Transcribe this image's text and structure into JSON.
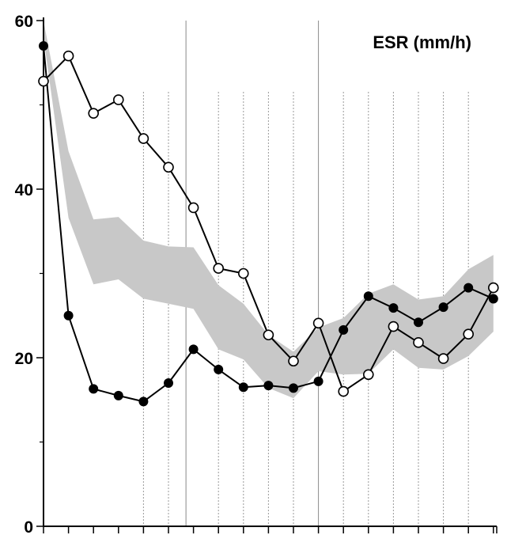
{
  "chart_data": {
    "type": "line",
    "title": "ESR (mm/h)",
    "xlabel": "",
    "ylabel": "",
    "ylim": [
      0,
      60
    ],
    "y_ticks": [
      0,
      20,
      40,
      60
    ],
    "x": [
      0,
      1,
      2,
      3,
      4,
      5,
      6,
      7,
      8,
      9,
      10,
      11,
      12,
      13,
      14,
      15,
      16,
      17,
      18
    ],
    "series": [
      {
        "marker": "filled-circle",
        "color": "#000000",
        "values": [
          57,
          25,
          16.3,
          15.5,
          14.8,
          17,
          21,
          18.6,
          16.5,
          16.7,
          16.4,
          17.2,
          23.3,
          27.3,
          25.9,
          24.2,
          26,
          28.3,
          27
        ]
      },
      {
        "marker": "open-circle",
        "color": "#000000",
        "values": [
          52.8,
          55.8,
          49,
          50.6,
          46,
          42.6,
          37.8,
          30.6,
          30,
          22.7,
          19.6,
          24.1,
          16,
          18,
          23.7,
          21.8,
          19.9,
          22.8,
          28.3
        ]
      }
    ],
    "band": {
      "color": "#c8c8c8",
      "upper": [
        60,
        44.5,
        36.4,
        36.7,
        33.9,
        33.2,
        33.1,
        28.6,
        26.4,
        22.7,
        20.7,
        23.6,
        24.7,
        27.6,
        28.7,
        26.9,
        27.3,
        30.5,
        32.2
      ],
      "lower": [
        58,
        36.6,
        28.7,
        29.3,
        27,
        26.4,
        25.8,
        21,
        19.8,
        16.4,
        15.2,
        18.4,
        18,
        18.1,
        21,
        18.8,
        18.6,
        20.2,
        23.1
      ]
    },
    "grid": {
      "vertical": true,
      "solid_positions": [
        5.7,
        11
      ],
      "dotted_positions": [
        4,
        5,
        7,
        8,
        9,
        10,
        12,
        13,
        14,
        15,
        16,
        17
      ]
    },
    "minor_y_ticks": [
      10,
      30,
      50
    ]
  }
}
